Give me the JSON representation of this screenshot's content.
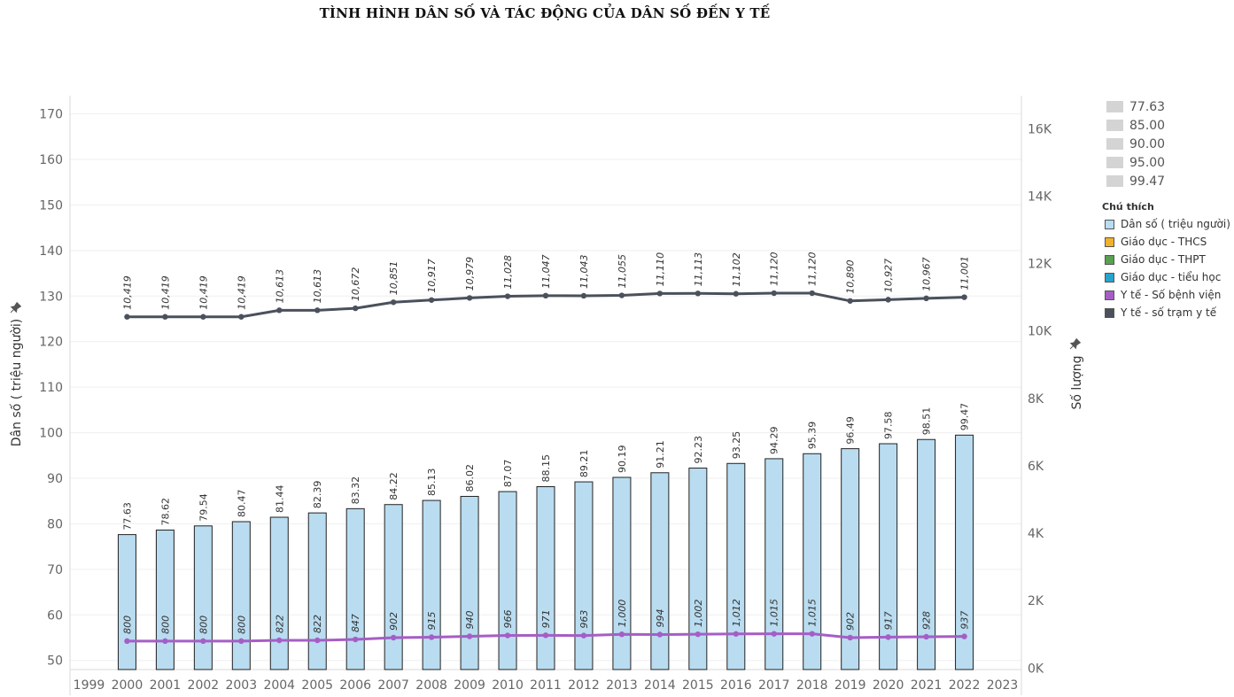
{
  "title": "TÌNH HÌNH DÂN SỐ VÀ TÁC ĐỘNG CỦA DÂN SỐ ĐẾN Y TẾ",
  "size_legend": [
    "77.63",
    "85.00",
    "90.00",
    "95.00",
    "99.47"
  ],
  "legend": {
    "title": "Chú thích",
    "items": [
      {
        "label": "Dân số ( triệu người)",
        "color": "#b9dcf0"
      },
      {
        "label": "Giáo dục - THCS",
        "color": "#f2b12a"
      },
      {
        "label": "Giáo dục - THPT",
        "color": "#59a14f"
      },
      {
        "label": "Giáo dục - tiểu học",
        "color": "#27a3cc"
      },
      {
        "label": "Y tế - Số bệnh viện",
        "color": "#a55ec6"
      },
      {
        "label": "Y tế - số trạm y tế",
        "color": "#4a515c"
      }
    ]
  },
  "chart_data": {
    "type": "bar",
    "categories": [
      "1999",
      "2000",
      "2001",
      "2002",
      "2003",
      "2004",
      "2005",
      "2006",
      "2007",
      "2008",
      "2009",
      "2010",
      "2011",
      "2012",
      "2013",
      "2014",
      "2015",
      "2016",
      "2017",
      "2018",
      "2019",
      "2020",
      "2021",
      "2022",
      "2023"
    ],
    "ylabel": "Dân số ( triệu người)",
    "y2label": "Số lượng",
    "ylim": [
      48,
      174
    ],
    "y2lim": [
      -45,
      16980
    ],
    "yticks": [
      "50",
      "60",
      "70",
      "80",
      "90",
      "100",
      "110",
      "120",
      "130",
      "140",
      "150",
      "160",
      "170"
    ],
    "y2ticks": [
      "0K",
      "2K",
      "4K",
      "6K",
      "8K",
      "10K",
      "12K",
      "14K",
      "16K"
    ],
    "grid": true,
    "series": [
      {
        "name": "Dân số ( triệu người)",
        "type": "bar",
        "axis": "left",
        "color": "#b9dcf0",
        "values": [
          null,
          77.63,
          78.62,
          79.54,
          80.47,
          81.44,
          82.39,
          83.32,
          84.22,
          85.13,
          86.02,
          87.07,
          88.15,
          89.21,
          90.19,
          91.21,
          92.23,
          93.25,
          94.29,
          95.39,
          96.49,
          97.58,
          98.51,
          99.47,
          null
        ],
        "labels": [
          null,
          "77.63",
          "78.62",
          "79.54",
          "80.47",
          "81.44",
          "82.39",
          "83.32",
          "84.22",
          "85.13",
          "86.02",
          "87.07",
          "88.15",
          "89.21",
          "90.19",
          "91.21",
          "92.23",
          "93.25",
          "94.29",
          "95.39",
          "96.49",
          "97.58",
          "98.51",
          "99.47",
          null
        ]
      },
      {
        "name": "Y tế - số trạm y tế",
        "type": "line",
        "axis": "right",
        "color": "#4a515c",
        "values": [
          null,
          10419,
          10419,
          10419,
          10419,
          10613,
          10613,
          10672,
          10851,
          10917,
          10979,
          11028,
          11047,
          11043,
          11055,
          11110,
          11113,
          11102,
          11120,
          11120,
          10890,
          10927,
          10967,
          11001,
          null
        ],
        "labels": [
          null,
          "10,419",
          "10,419",
          "10,419",
          "10,419",
          "10,613",
          "10,613",
          "10,672",
          "10,851",
          "10,917",
          "10,979",
          "11,028",
          "11,047",
          "11,043",
          "11,055",
          "11,110",
          "11,113",
          "11,102",
          "11,120",
          "11,120",
          "10,890",
          "10,927",
          "10,967",
          "11,001",
          null
        ]
      },
      {
        "name": "Y tế - Số bệnh viện",
        "type": "line",
        "axis": "right",
        "color": "#a55ec6",
        "values": [
          null,
          800,
          800,
          800,
          800,
          822,
          822,
          847,
          902,
          915,
          940,
          966,
          971,
          963,
          1000,
          994,
          1002,
          1012,
          1015,
          1015,
          902,
          917,
          928,
          937,
          null
        ],
        "labels": [
          null,
          "800",
          "800",
          "800",
          "800",
          "822",
          "822",
          "847",
          "902",
          "915",
          "940",
          "966",
          "971",
          "963",
          "1,000",
          "994",
          "1,002",
          "1,012",
          "1,015",
          "1,015",
          "902",
          "917",
          "928",
          "937",
          null
        ]
      }
    ]
  }
}
